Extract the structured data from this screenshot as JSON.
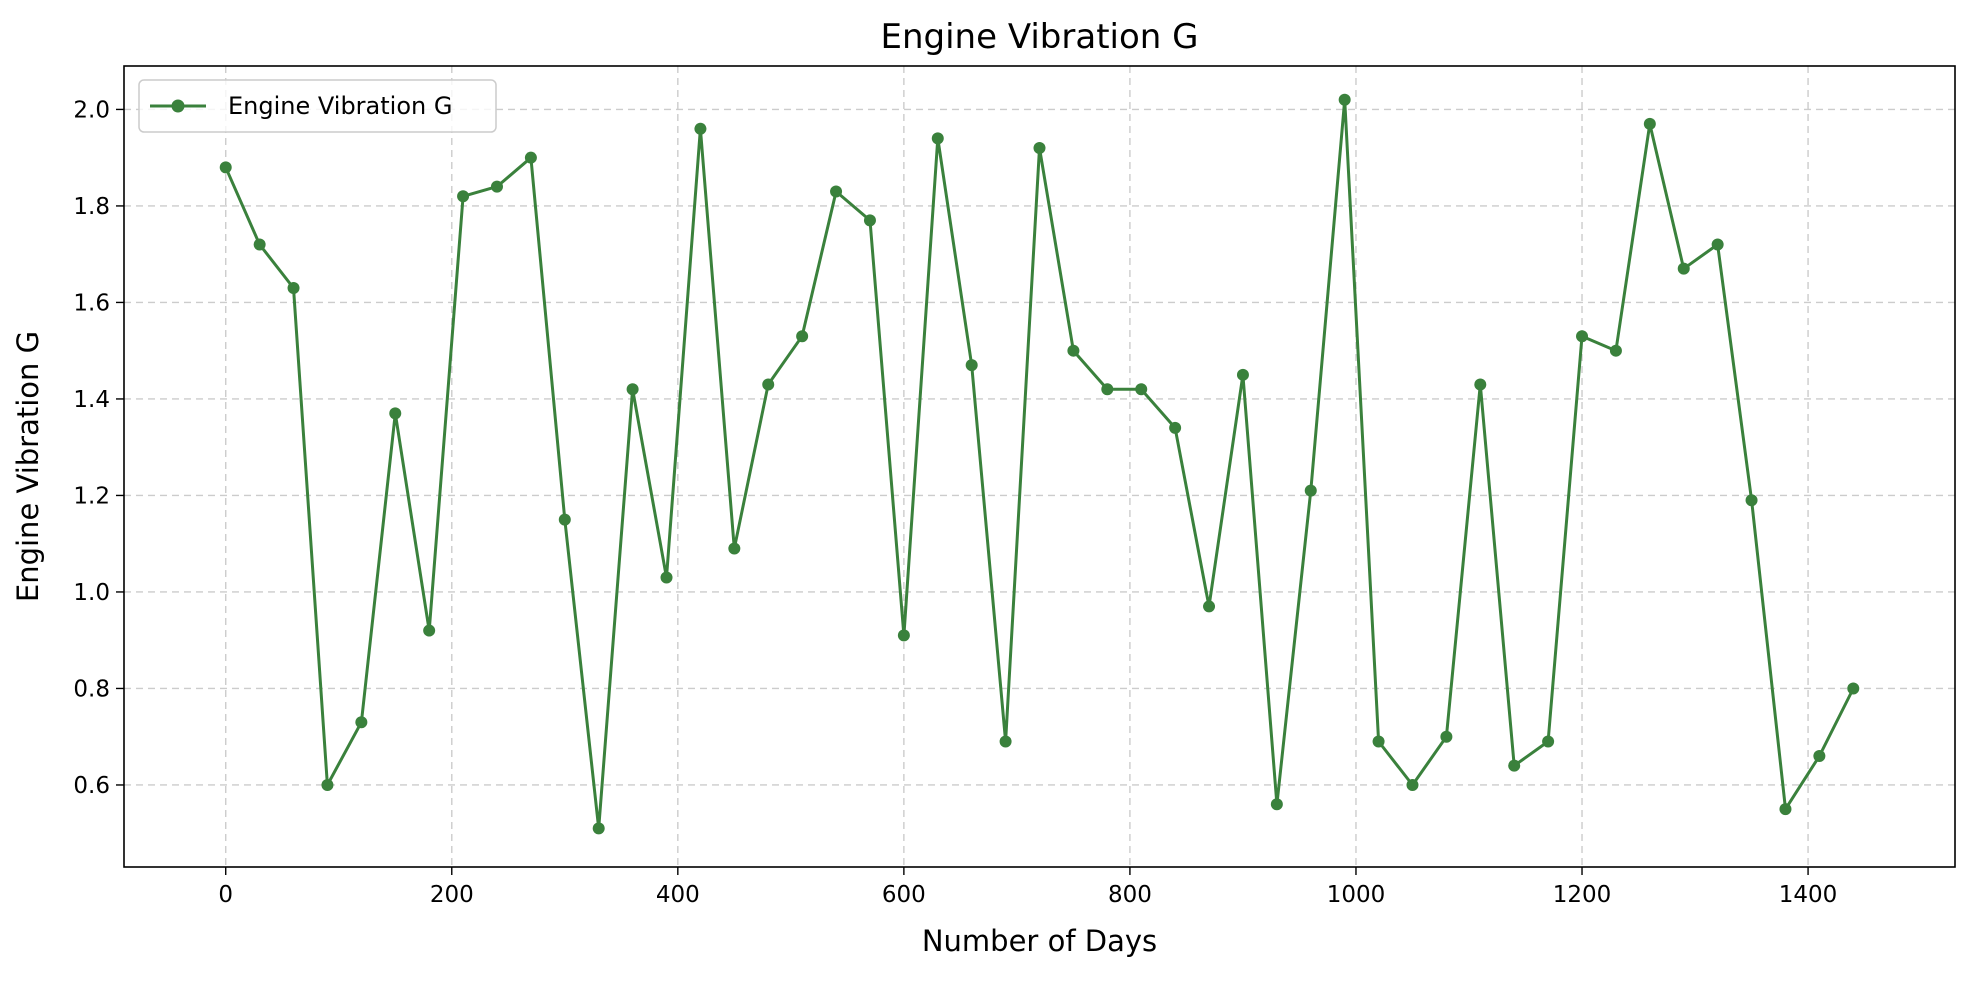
{
  "chart_data": {
    "type": "line",
    "title": "Engine Vibration G",
    "xlabel": "Number of Days",
    "ylabel": "Engine Vibration G",
    "xlim": [
      -90,
      1530
    ],
    "ylim": [
      0.43,
      2.09
    ],
    "xticks": [
      0,
      200,
      400,
      600,
      800,
      1000,
      1200,
      1400
    ],
    "yticks": [
      0.6,
      0.8,
      1.0,
      1.2,
      1.4,
      1.6,
      1.8,
      2.0
    ],
    "xtick_labels": [
      "0",
      "200",
      "400",
      "600",
      "800",
      "1000",
      "1200",
      "1400"
    ],
    "ytick_labels": [
      "0.6",
      "0.8",
      "1.0",
      "1.2",
      "1.4",
      "1.6",
      "1.8",
      "2.0"
    ],
    "grid": true,
    "grid_style": "dashed",
    "legend_position": "top-left",
    "series": [
      {
        "name": "Engine Vibration G",
        "color": "#3a813c",
        "marker": "circle",
        "x": [
          0,
          30,
          60,
          90,
          120,
          150,
          180,
          210,
          240,
          270,
          300,
          330,
          360,
          390,
          420,
          450,
          480,
          510,
          540,
          570,
          600,
          630,
          660,
          690,
          720,
          750,
          780,
          810,
          840,
          870,
          900,
          930,
          960,
          990,
          1020,
          1050,
          1080,
          1110,
          1140,
          1170,
          1200,
          1230,
          1260,
          1290,
          1320,
          1350,
          1380,
          1410,
          1440
        ],
        "y": [
          1.88,
          1.72,
          1.63,
          0.6,
          0.73,
          1.37,
          0.92,
          1.82,
          1.84,
          1.9,
          1.15,
          0.51,
          1.42,
          1.03,
          1.96,
          1.09,
          1.43,
          1.53,
          1.83,
          1.77,
          0.91,
          1.94,
          1.47,
          0.69,
          1.92,
          1.5,
          1.42,
          1.42,
          1.34,
          0.97,
          1.45,
          0.56,
          1.21,
          2.02,
          0.69,
          0.6,
          0.7,
          1.43,
          0.64,
          0.69,
          1.53,
          1.5,
          1.97,
          1.67,
          1.72,
          1.19,
          0.55,
          0.66,
          0.8
        ]
      }
    ]
  }
}
